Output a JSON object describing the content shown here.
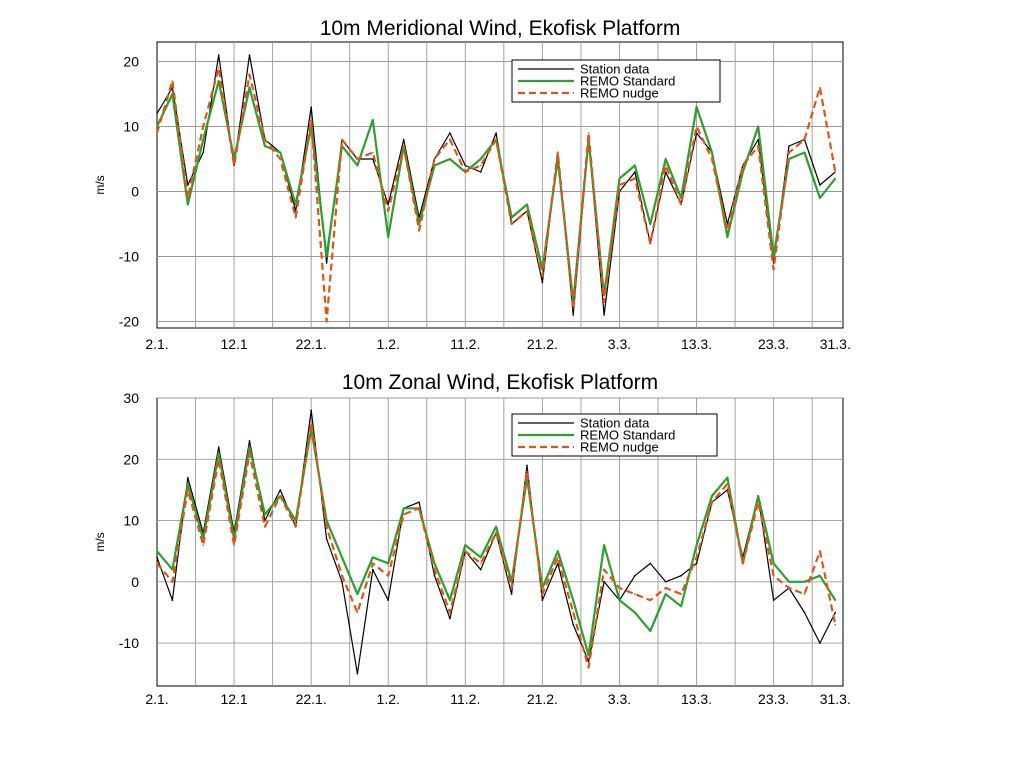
{
  "chart_data": [
    {
      "type": "line",
      "title": "10m Meridional Wind, Ekofisk Platform",
      "xlabel": "",
      "ylabel": "m/s",
      "ylim": [
        -21,
        23
      ],
      "yticks": [
        20,
        10,
        0,
        -10,
        -20
      ],
      "ytick_labels": [
        "20",
        "10",
        "0",
        "-10",
        "-20"
      ],
      "xlim": [
        0,
        89
      ],
      "xtick_labels": [
        "2.1.",
        "12.1",
        "22.1.",
        "1.2.",
        "11.2.",
        "21.2.",
        "3.3.",
        "13.3.",
        "23.3.",
        "31.3."
      ],
      "xtick_positions": [
        0,
        10,
        20,
        30,
        40,
        50,
        60,
        70,
        80,
        88
      ],
      "grid": true,
      "legend_position": "top-right",
      "x": [
        0,
        2,
        4,
        6,
        8,
        10,
        12,
        14,
        16,
        18,
        20,
        22,
        24,
        26,
        28,
        30,
        32,
        34,
        36,
        38,
        40,
        42,
        44,
        46,
        48,
        50,
        52,
        54,
        56,
        58,
        60,
        62,
        64,
        66,
        68,
        70,
        72,
        74,
        76,
        78,
        80,
        82,
        84,
        86,
        88
      ],
      "series": [
        {
          "name": "Station data",
          "color": "#000000",
          "values": [
            12,
            16,
            1,
            6,
            21,
            4,
            21,
            8,
            6,
            -3,
            13,
            -11,
            8,
            5,
            5,
            -2,
            8,
            -4,
            5,
            9,
            4,
            3,
            9,
            -5,
            -3,
            -14,
            6,
            -19,
            8,
            -19,
            0,
            3,
            -8,
            3,
            -2,
            9,
            6,
            -5,
            4,
            8,
            -11,
            7,
            8,
            1,
            3
          ]
        },
        {
          "name": "REMO Standard",
          "color": "#2e9e2e",
          "values": [
            10,
            15,
            -2,
            8,
            17,
            5,
            16,
            7,
            6,
            -2,
            10,
            -10,
            7,
            4,
            11,
            -7,
            7,
            -5,
            4,
            5,
            3,
            5,
            8,
            -4,
            -2,
            -12,
            5,
            -17,
            8,
            -16,
            2,
            4,
            -5,
            5,
            -1,
            13,
            6,
            -7,
            3,
            10,
            -10,
            5,
            6,
            -1,
            2
          ]
        },
        {
          "name": "REMO nudge",
          "color": "#e0541a",
          "values": [
            9,
            17,
            -1,
            10,
            19,
            4,
            18,
            8,
            5,
            -4,
            11,
            -20,
            8,
            5,
            6,
            -3,
            7,
            -6,
            5,
            8,
            3,
            4,
            8,
            -5,
            -3,
            -13,
            6,
            -18,
            9,
            -17,
            1,
            2,
            -8,
            4,
            -2,
            10,
            5,
            -6,
            4,
            7,
            -12,
            6,
            8,
            16,
            3
          ]
        }
      ]
    },
    {
      "type": "line",
      "title": "10m Zonal Wind, Ekofisk Platform",
      "xlabel": "",
      "ylabel": "m/s",
      "ylim": [
        -17,
        30
      ],
      "yticks": [
        30,
        20,
        10,
        0,
        -10
      ],
      "ytick_labels": [
        "30",
        "20",
        "10",
        "0",
        "-10"
      ],
      "xlim": [
        0,
        89
      ],
      "xtick_labels": [
        "2.1.",
        "12.1",
        "22.1.",
        "1.2.",
        "11.2.",
        "21.2.",
        "3.3.",
        "13.3.",
        "23.3.",
        "31.3."
      ],
      "xtick_positions": [
        0,
        10,
        20,
        30,
        40,
        50,
        60,
        70,
        80,
        88
      ],
      "grid": true,
      "legend_position": "top-right",
      "x": [
        0,
        2,
        4,
        6,
        8,
        10,
        12,
        14,
        16,
        18,
        20,
        22,
        24,
        26,
        28,
        30,
        32,
        34,
        36,
        38,
        40,
        42,
        44,
        46,
        48,
        50,
        52,
        54,
        56,
        58,
        60,
        62,
        64,
        66,
        68,
        70,
        72,
        74,
        76,
        78,
        80,
        82,
        84,
        86,
        88
      ],
      "series": [
        {
          "name": "Station data",
          "color": "#000000",
          "values": [
            4,
            -3,
            17,
            8,
            22,
            8,
            23,
            10,
            15,
            9,
            28,
            7,
            0,
            -15,
            2,
            -3,
            12,
            13,
            1,
            -6,
            5,
            2,
            8,
            -2,
            19,
            -3,
            3,
            -7,
            -13,
            0,
            -3,
            1,
            3,
            0,
            1,
            3,
            13,
            15,
            4,
            14,
            -3,
            -1,
            -5,
            -10,
            -5
          ]
        },
        {
          "name": "REMO Standard",
          "color": "#2e9e2e",
          "values": [
            5,
            2,
            16,
            7,
            21,
            7,
            22,
            11,
            14,
            10,
            25,
            10,
            4,
            -2,
            4,
            3,
            12,
            12,
            3,
            -3,
            6,
            4,
            9,
            0,
            17,
            -1,
            5,
            -3,
            -12,
            6,
            -3,
            -5,
            -8,
            -2,
            -4,
            6,
            14,
            17,
            3,
            14,
            3,
            0,
            0,
            1,
            -3
          ]
        },
        {
          "name": "REMO nudge",
          "color": "#e0541a",
          "values": [
            3,
            0,
            15,
            6,
            20,
            6,
            21,
            9,
            14,
            9,
            26,
            9,
            1,
            -5,
            3,
            1,
            11,
            12,
            2,
            -5,
            5,
            3,
            8,
            -1,
            18,
            -2,
            4,
            -5,
            -14,
            2,
            -1,
            -2,
            -3,
            -1,
            -2,
            4,
            13,
            16,
            3,
            13,
            1,
            -1,
            -2,
            5,
            -7
          ]
        }
      ]
    }
  ]
}
